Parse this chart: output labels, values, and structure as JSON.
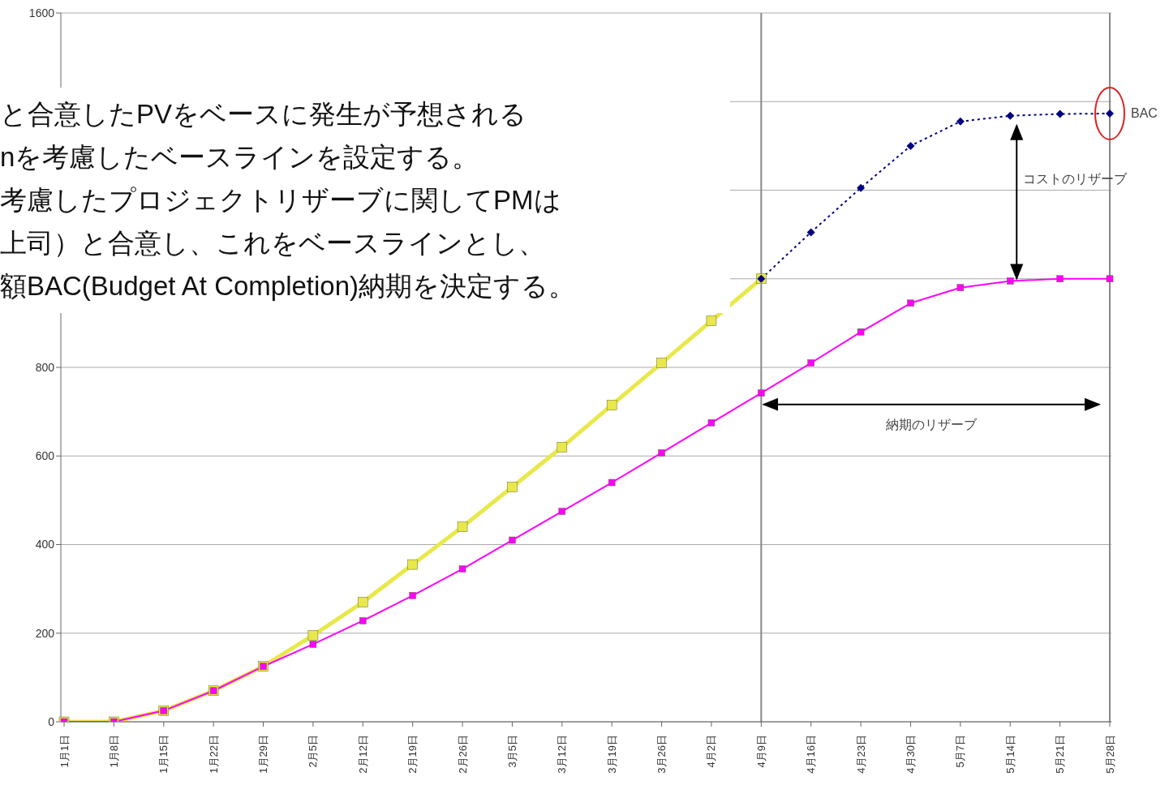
{
  "chart_data": {
    "type": "line",
    "categories": [
      "1月1日",
      "1月8日",
      "1月15日",
      "1月22日",
      "1月29日",
      "2月5日",
      "2月12日",
      "2月19日",
      "2月26日",
      "3月5日",
      "3月12日",
      "3月19日",
      "3月26日",
      "4月2日",
      "4月9日",
      "4月16日",
      "4月23日",
      "4月30日",
      "5月7日",
      "5月14日",
      "5月21日",
      "5月28日"
    ],
    "series": [
      {
        "color": "#e8e84a",
        "marker": "square",
        "line_style": "solid",
        "values": [
          0,
          0,
          25,
          70,
          125,
          195,
          270,
          355,
          440,
          530,
          620,
          715,
          810,
          905,
          1000,
          null,
          null,
          null,
          null,
          null,
          null,
          null
        ]
      },
      {
        "color": "#ff00ff",
        "marker": "square",
        "line_style": "solid",
        "values": [
          0,
          0,
          25,
          70,
          125,
          175,
          228,
          285,
          345,
          410,
          475,
          540,
          607,
          675,
          742,
          810,
          880,
          945,
          980,
          995,
          1000,
          1000
        ]
      },
      {
        "color": "#000080",
        "marker": "diamond",
        "line_style": "dotted",
        "values": [
          null,
          null,
          null,
          null,
          null,
          null,
          null,
          null,
          null,
          null,
          null,
          null,
          null,
          null,
          1000,
          1105,
          1205,
          1300,
          1355,
          1368,
          1372,
          1373
        ]
      }
    ],
    "ylim": [
      0,
      1600
    ],
    "yticks": [
      0,
      200,
      400,
      600,
      800,
      {
        "value": 1000,
        "label": null
      },
      {
        "value": 1200,
        "label": null
      },
      {
        "value": 1400,
        "label": null
      },
      1600
    ],
    "grid": "y",
    "ref_lines": [
      {
        "axis": "x",
        "value": "4月9日"
      },
      {
        "axis": "x",
        "value": "5月28日"
      }
    ],
    "annotations": [
      "と合意したPVをベースに発生が予想される",
      "nを考慮したベースラインを設定する。",
      "考慮したプロジェクトリザーブに関してPMは",
      "上司）と合意し、これをベースラインとし、",
      "額BAC(Budget At Completion)納期を決定する。",
      {
        "text": "BAC",
        "x": "5月28日",
        "y": 1373
      },
      "コストのリザーブ",
      "納期のリザーブ"
    ]
  }
}
